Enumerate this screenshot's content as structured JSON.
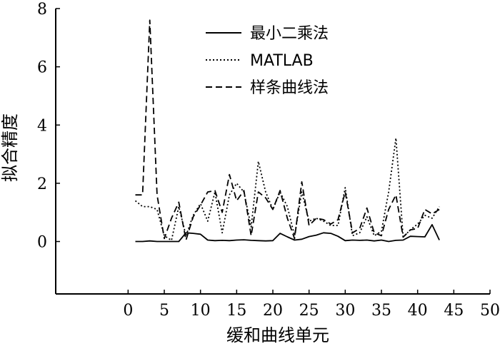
{
  "chart_data": {
    "type": "line",
    "title": "",
    "xlabel": "缓和曲线单元",
    "ylabel": "拟合精度",
    "xlim": [
      -10,
      50
    ],
    "ylim": [
      -1.8,
      8
    ],
    "xticks": [
      0,
      5,
      10,
      15,
      20,
      25,
      30,
      35,
      40,
      45,
      50
    ],
    "yticks": [
      0,
      2,
      4,
      6,
      8
    ],
    "grid": false,
    "legend_position": "top-center",
    "x": [
      1,
      2,
      3,
      4,
      5,
      6,
      7,
      8,
      9,
      10,
      11,
      12,
      13,
      14,
      15,
      16,
      17,
      18,
      19,
      20,
      21,
      22,
      23,
      24,
      25,
      26,
      27,
      28,
      29,
      30,
      31,
      32,
      33,
      34,
      35,
      36,
      37,
      38,
      39,
      40,
      41,
      42,
      43
    ],
    "series": [
      {
        "name": "最小二乘法",
        "style": "solid",
        "values": [
          0.0,
          0.0,
          0.02,
          0.0,
          0.0,
          0.0,
          0.0,
          0.3,
          0.28,
          0.25,
          0.05,
          0.03,
          0.04,
          0.03,
          0.05,
          0.06,
          0.04,
          0.03,
          0.02,
          0.03,
          0.28,
          0.16,
          0.05,
          0.08,
          0.17,
          0.22,
          0.3,
          0.28,
          0.18,
          0.03,
          0.05,
          0.04,
          0.05,
          0.02,
          0.05,
          0.0,
          0.04,
          0.05,
          0.18,
          0.17,
          0.16,
          0.58,
          0.05
        ]
      },
      {
        "name": "MATLAB",
        "style": "dotted",
        "values": [
          1.4,
          1.2,
          1.2,
          1.1,
          0.2,
          0.04,
          1.2,
          0.2,
          0.9,
          1.3,
          0.7,
          1.7,
          0.3,
          1.6,
          2.0,
          1.7,
          0.5,
          2.75,
          1.7,
          1.1,
          1.7,
          1.2,
          0.2,
          1.7,
          0.7,
          0.8,
          0.7,
          0.55,
          0.55,
          1.85,
          0.2,
          0.3,
          0.85,
          0.2,
          0.35,
          1.7,
          3.55,
          0.15,
          0.4,
          0.6,
          0.9,
          0.8,
          1.2
        ]
      },
      {
        "name": "样条曲线法",
        "style": "dashed",
        "values": [
          1.6,
          1.6,
          7.6,
          1.6,
          0.1,
          0.8,
          1.35,
          0.05,
          0.85,
          1.25,
          1.7,
          1.75,
          1.0,
          2.3,
          1.4,
          1.75,
          0.2,
          1.7,
          1.5,
          1.1,
          1.75,
          0.8,
          0.1,
          2.05,
          0.55,
          0.8,
          0.75,
          0.6,
          0.75,
          1.7,
          0.3,
          0.45,
          1.15,
          0.3,
          0.2,
          1.1,
          1.6,
          0.15,
          0.4,
          0.45,
          1.1,
          0.95,
          1.1
        ]
      }
    ]
  }
}
